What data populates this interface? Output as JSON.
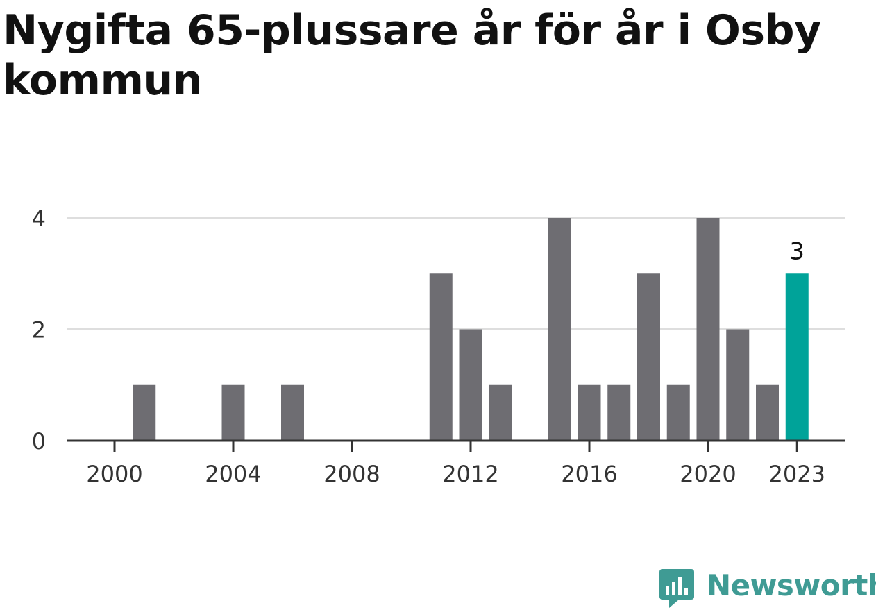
{
  "chart_data": {
    "type": "bar",
    "title": "Nygifta 65-plussare år för år i Osby kommun",
    "categories": [
      2000,
      2001,
      2002,
      2003,
      2004,
      2005,
      2006,
      2007,
      2008,
      2009,
      2010,
      2011,
      2012,
      2013,
      2014,
      2015,
      2016,
      2017,
      2018,
      2019,
      2020,
      2021,
      2022,
      2023
    ],
    "values": [
      0,
      1,
      0,
      0,
      1,
      0,
      1,
      0,
      0,
      0,
      0,
      3,
      2,
      1,
      0,
      4,
      1,
      1,
      3,
      1,
      4,
      2,
      1,
      3
    ],
    "x_tick_labels": [
      "2000",
      "2004",
      "2008",
      "2012",
      "2016",
      "2020",
      "2023"
    ],
    "y_ticks": [
      0,
      2,
      4
    ],
    "ylim": [
      0,
      4
    ],
    "xlabel": "",
    "ylabel": "",
    "highlight": {
      "category": 2023,
      "label": "3"
    },
    "colors": {
      "bar": "#6e6d72",
      "highlight": "#00a399",
      "grid": "#dedede",
      "axis": "#333333",
      "tick_text": "#333333"
    }
  },
  "brand": {
    "name": "Newsworthy",
    "icon": "newsworthy-logo-icon",
    "color": "#3f9b94"
  }
}
